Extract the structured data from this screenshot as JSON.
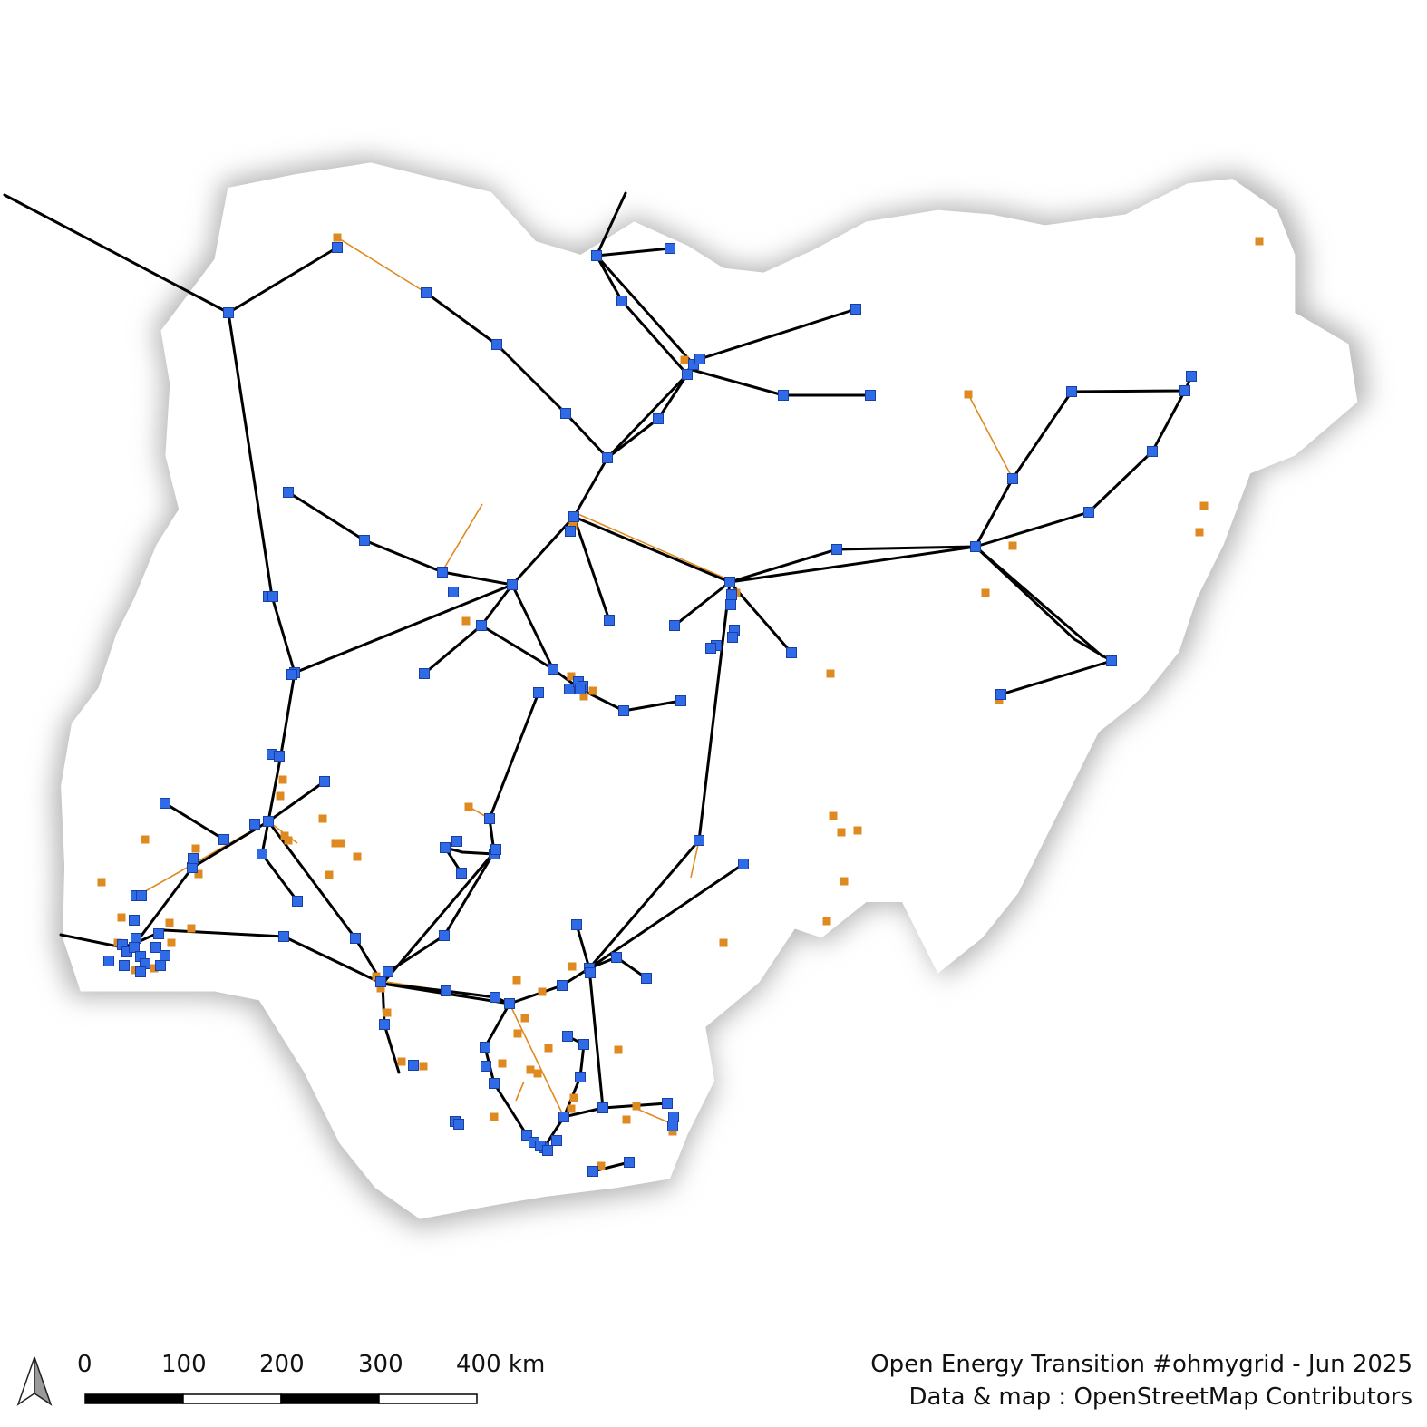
{
  "map": {
    "country_fill": "#ffffff",
    "shadow_color": "#b5b5b5",
    "line_colors": {
      "transmission": "#000000",
      "minor": "#e08a1e"
    },
    "substation_colors": {
      "major": "#2f6be6",
      "minor": "#df8a20"
    }
  },
  "north_arrow": {
    "icon": "north-arrow-icon"
  },
  "scale_bar": {
    "labels": [
      "0",
      "100",
      "200",
      "300",
      "400 km"
    ]
  },
  "credits": {
    "line1": "Open Energy Transition #ohmygrid - Jun 2025",
    "line2": "Data & map : OpenStreetMap Contributors"
  }
}
